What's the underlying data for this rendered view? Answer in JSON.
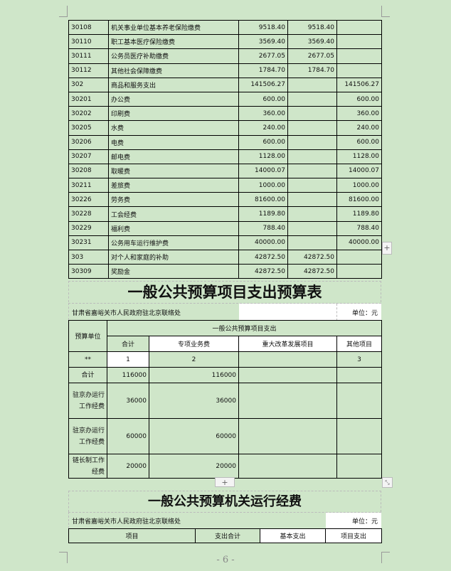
{
  "table1": {
    "rows": [
      [
        "30108",
        "机关事业单位基本养老保险缴费",
        "9518.40",
        "9518.40",
        ""
      ],
      [
        "30110",
        "职工基本医疗保险缴费",
        "3569.40",
        "3569.40",
        ""
      ],
      [
        "30111",
        "公务员医疗补助缴费",
        "2677.05",
        "2677.05",
        ""
      ],
      [
        "30112",
        "其他社会保障缴费",
        "1784.70",
        "1784.70",
        ""
      ],
      [
        "302",
        "商品和服务支出",
        "141506.27",
        "",
        "141506.27"
      ],
      [
        "30201",
        "办公费",
        "600.00",
        "",
        "600.00"
      ],
      [
        "30202",
        "印刷费",
        "360.00",
        "",
        "360.00"
      ],
      [
        "30205",
        "水费",
        "240.00",
        "",
        "240.00"
      ],
      [
        "30206",
        "电费",
        "600.00",
        "",
        "600.00"
      ],
      [
        "30207",
        "邮电费",
        "1128.00",
        "",
        "1128.00"
      ],
      [
        "30208",
        "取暖费",
        "14000.07",
        "",
        "14000.07"
      ],
      [
        "30211",
        "差旅费",
        "1000.00",
        "",
        "1000.00"
      ],
      [
        "30226",
        "劳务费",
        "81600.00",
        "",
        "81600.00"
      ],
      [
        "30228",
        "工会经费",
        "1189.80",
        "",
        "1189.80"
      ],
      [
        "30229",
        "福利费",
        "788.40",
        "",
        "788.40"
      ],
      [
        "30231",
        "公务用车运行维护费",
        "40000.00",
        "",
        "40000.00"
      ],
      [
        "303",
        "对个人和家庭的补助",
        "42872.50",
        "42872.50",
        ""
      ],
      [
        "30309",
        "奖励金",
        "42872.50",
        "42872.50",
        ""
      ]
    ]
  },
  "section2": {
    "title": "一般公共预算项目支出预算表",
    "org": "甘肃省嘉峪关市人民政府驻北京联络处",
    "unit": "单位：元",
    "header_unit": "预算单位",
    "header_group": "一般公共预算项目支出",
    "columns": [
      "合计",
      "专项业务费",
      "重大改革发展项目",
      "其他项目"
    ],
    "index_row": [
      "**",
      "1",
      "2",
      "",
      "3"
    ],
    "rows": [
      [
        "合计",
        "116000",
        "116000",
        "",
        ""
      ],
      [
        "驻京办运行工作经费",
        "36000",
        "36000",
        "",
        ""
      ],
      [
        "驻京办运行工作经费",
        "60000",
        "60000",
        "",
        ""
      ],
      [
        "链长制工作经费",
        "20000",
        "20000",
        "",
        ""
      ]
    ]
  },
  "section3": {
    "title": "一般公共预算机关运行经费",
    "org": "甘肃省嘉峪关市人民政府驻北京联络处",
    "unit": "单位：元",
    "columns": [
      "项目",
      "支出合计",
      "基本支出",
      "项目支出"
    ]
  },
  "controls": {
    "add_row": "+",
    "add_column": "+"
  },
  "page_number": "- 6 -"
}
